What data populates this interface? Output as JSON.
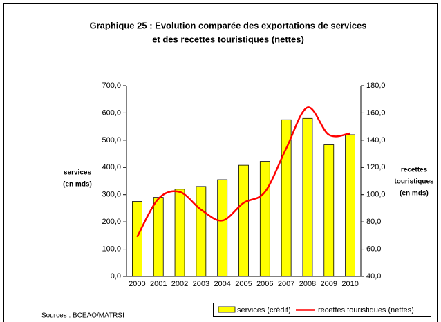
{
  "chart_data": {
    "type": "bar-line",
    "title": [
      "Graphique 25 : Evolution comparée des exportations de services",
      "et des recettes touristiques (nettes)"
    ],
    "y_label": [
      "services",
      "(en mds)"
    ],
    "y2_label": [
      "recettes",
      "touristiques",
      "(en mds)"
    ],
    "source": "Sources : BCEAO/MATRSI",
    "categories": [
      "2000",
      "2001",
      "2002",
      "2003",
      "2004",
      "2005",
      "2006",
      "2007",
      "2008",
      "2009",
      "2010"
    ],
    "series": [
      {
        "name": "services (crédit)",
        "color": "#ffff00",
        "type": "bar",
        "values": [
          275,
          290,
          320,
          330,
          355,
          408,
          422,
          575,
          580,
          483,
          520
        ]
      },
      {
        "name": "recettes touristiques (nettes)",
        "color": "#ff0000",
        "type": "line",
        "axis": "y2",
        "values": [
          69,
          97,
          102,
          89,
          81,
          94,
          102,
          134,
          164,
          144,
          145
        ]
      }
    ],
    "ylim": [
      0,
      700
    ],
    "yticks": [
      {
        "value": 0,
        "label": "0,0"
      },
      {
        "value": 100,
        "label": "100,0"
      },
      {
        "value": 200,
        "label": "200,0"
      },
      {
        "value": 300,
        "label": "300,0"
      },
      {
        "value": 400,
        "label": "400,0"
      },
      {
        "value": 500,
        "label": "500,0"
      },
      {
        "value": 600,
        "label": "600,0"
      },
      {
        "value": 700,
        "label": "700,0"
      }
    ],
    "y2lim": [
      40,
      180
    ],
    "y2ticks": [
      {
        "value": 40,
        "label": "40,0"
      },
      {
        "value": 60,
        "label": "60,0"
      },
      {
        "value": 80,
        "label": "80,0"
      },
      {
        "value": 100,
        "label": "100,0"
      },
      {
        "value": 120,
        "label": "120,0"
      },
      {
        "value": 140,
        "label": "140,0"
      },
      {
        "value": 160,
        "label": "160,0"
      },
      {
        "value": 180,
        "label": "180,0"
      }
    ]
  }
}
